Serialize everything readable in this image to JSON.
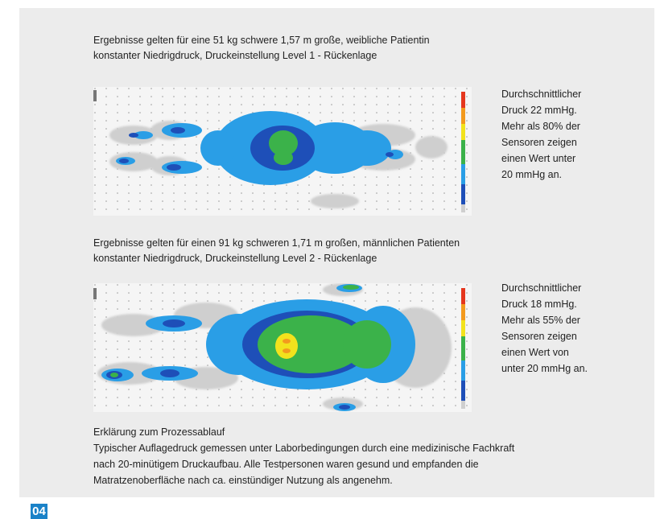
{
  "block1": {
    "caption_line1": "Ergebnisse gelten für eine 51 kg schwere 1,57 m große, weibliche Patientin",
    "caption_line2": "konstanter Niedrigdruck, Druckeinstellung Level 1 - Rückenlage",
    "desc": [
      "Durchschnittlicher",
      "Druck 22 mmHg.",
      "Mehr als 80% der",
      "Sensoren zeigen",
      "einen Wert unter",
      "20 mmHg an."
    ]
  },
  "block2": {
    "caption_line1": "Ergebnisse gelten für einen 91 kg schweren 1,71 m großen, männlichen Patienten",
    "caption_line2": "konstanter Niedrigdruck, Druckeinstellung Level 2 - Rückenlage",
    "desc": [
      "Durchschnittlicher",
      "Druck 18 mmHg.",
      "Mehr als 55% der",
      "Sensoren zeigen",
      "einen Wert von",
      "unter 20 mmHg an."
    ]
  },
  "explanation": {
    "title": "Erklärung zum Prozessablauf",
    "lines": [
      "Typischer Auflagedruck gemessen unter Laborbedingungen durch eine medizinische Fachkraft",
      "nach 20-minütigem Druckaufbau. Alle Testpersonen waren gesund und empfanden die",
      "Matratzenoberfläche nach ca. einstündiger Nutzung als angenehm."
    ]
  },
  "page_number": "04",
  "colors": {
    "light_grey": "#cfcfcf",
    "sky_blue": "#2a9ee6",
    "dark_blue": "#1e4fb8",
    "green": "#3bb24a",
    "yellow": "#f2e21d",
    "orange": "#f39a1e",
    "page_badge": "#1a82c8"
  }
}
